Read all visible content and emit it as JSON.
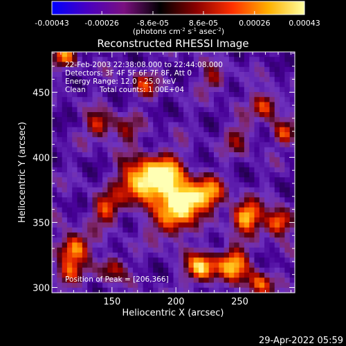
{
  "colorbar": {
    "tick_labels": [
      "-0.00043",
      "-0.00026",
      "-8.6e-05",
      "8.6e-05",
      "0.00026",
      "0.00043"
    ],
    "tick_values": [
      -0.00043,
      -0.00026,
      -8.6e-05,
      8.6e-05,
      0.00026,
      0.00043
    ],
    "range": [
      -0.00043,
      0.00043
    ],
    "units_main": "(photons cm",
    "units_exp1": "-2",
    "units_mid": " s",
    "units_exp2": "-1",
    "units_end": " asec",
    "units_exp3": "-2",
    "units_close": ")",
    "colors": [
      "#0000ff",
      "#4a00c0",
      "#7a1080",
      "#000000",
      "#8a0000",
      "#ff3000",
      "#ffb000",
      "#ffffa0"
    ]
  },
  "chart_data": {
    "type": "heatmap",
    "title": "Reconstructed RHESSI Image",
    "xlabel": "Heliocentric X (arcsec)",
    "ylabel": "Heliocentric Y (arcsec)",
    "xlim": [
      103,
      293
    ],
    "ylim": [
      296,
      481
    ],
    "x_ticks": [
      150,
      200,
      250
    ],
    "y_ticks": [
      300,
      350,
      400,
      450
    ],
    "annotations": {
      "time_range": "22-Feb-2003 22:38:08.000 to 22:44:08.000",
      "detectors": "Detectors: 3F 4F 5F 6F 7F 8F, Att 0",
      "energy_range": "Energy Range: 12.0 - 25.0 keV",
      "method": "Clean",
      "total_counts": "Total counts: 1.00E+04",
      "peak": "Position of Peak = [206,366]"
    },
    "peak_position": [
      206,
      366
    ],
    "sources": [
      {
        "x": 206,
        "y": 366,
        "intensity": 1.0,
        "sigma": 9
      },
      {
        "x": 190,
        "y": 385,
        "intensity": 0.9,
        "sigma": 12
      },
      {
        "x": 170,
        "y": 380,
        "intensity": 0.75,
        "sigma": 11
      },
      {
        "x": 225,
        "y": 372,
        "intensity": 0.7,
        "sigma": 9
      },
      {
        "x": 255,
        "y": 355,
        "intensity": 0.85,
        "sigma": 8
      },
      {
        "x": 280,
        "y": 350,
        "intensity": 0.8,
        "sigma": 7
      },
      {
        "x": 195,
        "y": 350,
        "intensity": 0.55,
        "sigma": 10
      },
      {
        "x": 145,
        "y": 360,
        "intensity": 0.55,
        "sigma": 8
      },
      {
        "x": 120,
        "y": 330,
        "intensity": 0.8,
        "sigma": 8
      },
      {
        "x": 115,
        "y": 310,
        "intensity": 0.55,
        "sigma": 7
      },
      {
        "x": 220,
        "y": 315,
        "intensity": 0.85,
        "sigma": 8
      },
      {
        "x": 245,
        "y": 318,
        "intensity": 0.75,
        "sigma": 9
      },
      {
        "x": 265,
        "y": 302,
        "intensity": 0.6,
        "sigma": 7
      },
      {
        "x": 150,
        "y": 315,
        "intensity": 0.5,
        "sigma": 7
      },
      {
        "x": 270,
        "y": 440,
        "intensity": 0.65,
        "sigma": 7
      },
      {
        "x": 285,
        "y": 418,
        "intensity": 0.5,
        "sigma": 6
      },
      {
        "x": 140,
        "y": 425,
        "intensity": 0.55,
        "sigma": 7
      },
      {
        "x": 113,
        "y": 478,
        "intensity": 0.6,
        "sigma": 6
      },
      {
        "x": 175,
        "y": 455,
        "intensity": 0.45,
        "sigma": 7
      },
      {
        "x": 230,
        "y": 460,
        "intensity": 0.4,
        "sigma": 7
      },
      {
        "x": 160,
        "y": 420,
        "intensity": 0.35,
        "sigma": 8
      },
      {
        "x": 250,
        "y": 415,
        "intensity": 0.35,
        "sigma": 8
      }
    ]
  },
  "footer": {
    "timestamp": "29-Apr-2022 05:59"
  }
}
